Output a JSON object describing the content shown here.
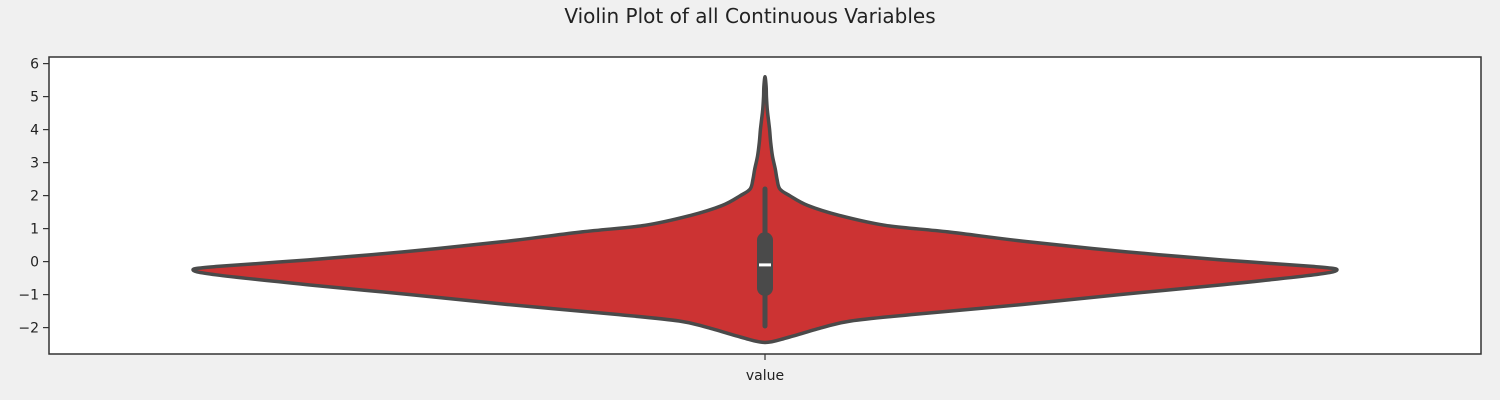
{
  "chart_data": {
    "type": "violin",
    "title": "Violin Plot of all Continuous Variables",
    "xlabel": "",
    "ylabel": "",
    "categories": [
      "value"
    ],
    "ylim": [
      -2.8,
      6.2
    ],
    "yticks": [
      6,
      5,
      4,
      3,
      2,
      1,
      0,
      -1,
      -2
    ],
    "ytick_labels": [
      "6",
      "5",
      "4",
      "3",
      "2",
      "1",
      "0",
      "−1",
      "−2"
    ],
    "grid": false,
    "density_profile": {
      "y": [
        -2.45,
        -2.3,
        -2.0,
        -1.8,
        -1.6,
        -1.3,
        -1.0,
        -0.7,
        -0.4,
        -0.25,
        -0.15,
        0.05,
        0.3,
        0.6,
        0.9,
        1.1,
        1.4,
        1.7,
        2.0,
        2.2,
        2.5,
        2.8,
        3.2,
        3.6,
        4.0,
        4.3,
        4.6,
        5.0,
        5.3,
        5.6
      ],
      "half_width": [
        0.0,
        0.04,
        0.1,
        0.15,
        0.26,
        0.45,
        0.62,
        0.8,
        0.96,
        1.0,
        0.96,
        0.8,
        0.63,
        0.46,
        0.32,
        0.21,
        0.13,
        0.075,
        0.043,
        0.026,
        0.021,
        0.018,
        0.013,
        0.01,
        0.008,
        0.006,
        0.004,
        0.0025,
        0.002,
        0.0
      ]
    },
    "box": {
      "whisker_low": -1.95,
      "q1": -0.8,
      "median": -0.1,
      "q3": 0.65,
      "whisker_high": 2.2
    },
    "colors": {
      "fill": "#cc3333",
      "outline": "#4a4a4a",
      "median": "#ffffff",
      "background": "#f0f0f0",
      "axes_face": "#ffffff",
      "spine": "#333333"
    }
  }
}
